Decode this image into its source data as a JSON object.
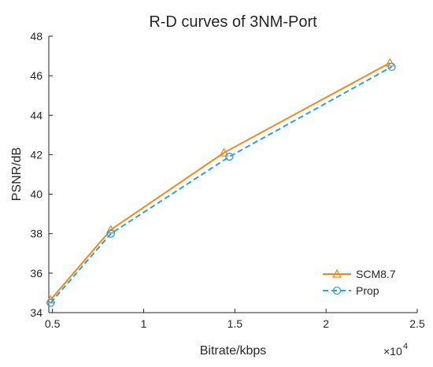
{
  "chart_data": {
    "type": "line",
    "title": "R-D curves of 3NM-Port",
    "xlabel": "Bitrate/kbps",
    "ylabel": "PSNR/dB",
    "x_multiplier_label": "×10",
    "x_multiplier_exponent": "4",
    "xlim": [
      0.48,
      2.5
    ],
    "ylim": [
      34,
      48
    ],
    "x_ticks": [
      0.5,
      1,
      1.5,
      2,
      2.5
    ],
    "x_tick_labels": [
      "0.5",
      "1",
      "1.5",
      "2",
      "2.5"
    ],
    "y_ticks": [
      34,
      36,
      38,
      40,
      42,
      44,
      46,
      48
    ],
    "y_tick_labels": [
      "34",
      "36",
      "38",
      "40",
      "42",
      "44",
      "46",
      "48"
    ],
    "grid": false,
    "legend_position": "bottom-right",
    "series": [
      {
        "name": "SCM8.7",
        "color": "#EE8A1A",
        "marker": "triangle",
        "line_style": "solid",
        "x": [
          0.49,
          0.82,
          1.44,
          2.35
        ],
        "y": [
          34.65,
          38.2,
          42.1,
          46.65
        ]
      },
      {
        "name": "Prop",
        "color": "#2E9FDF",
        "marker": "circle",
        "line_style": "dashed",
        "x": [
          0.49,
          0.82,
          1.47,
          2.36
        ],
        "y": [
          34.5,
          38.0,
          41.9,
          46.45
        ]
      }
    ]
  }
}
